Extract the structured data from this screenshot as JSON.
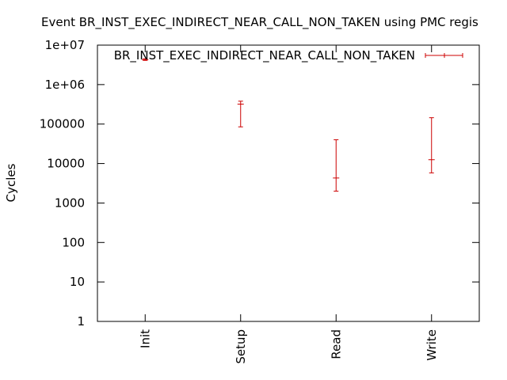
{
  "chart_data": {
    "type": "scatter",
    "subtype": "errorbar",
    "title": "Event BR_INST_EXEC_INDIRECT_NEAR_CALL_NON_TAKEN using PMC regis",
    "xlabel": "",
    "ylabel": "Cycles",
    "yscale": "log",
    "ylim": [
      1,
      10000000
    ],
    "yticks": [
      {
        "value": 1,
        "label": "1"
      },
      {
        "value": 10,
        "label": "10"
      },
      {
        "value": 100,
        "label": "100"
      },
      {
        "value": 1000,
        "label": "1000"
      },
      {
        "value": 10000,
        "label": "10000"
      },
      {
        "value": 100000,
        "label": "100000"
      },
      {
        "value": 1000000,
        "label": "1e+06"
      },
      {
        "value": 10000000,
        "label": "1e+07"
      }
    ],
    "categories": [
      "Init",
      "Setup",
      "Read",
      "Write"
    ],
    "legend": {
      "position": "top-right",
      "label": "BR_INST_EXEC_INDIRECT_NEAR_CALL_NON_TAKEN"
    },
    "grid": false,
    "colors": {
      "series": "#cc0000",
      "axis": "#000000"
    },
    "series": [
      {
        "name": "BR_INST_EXEC_INDIRECT_NEAR_CALL_NON_TAKEN",
        "points": [
          {
            "category": "Init",
            "value": 4300000,
            "low": 4100000,
            "high": 4500000
          },
          {
            "category": "Setup",
            "value": 320000,
            "low": 85000,
            "high": 380000
          },
          {
            "category": "Read",
            "value": 4300,
            "low": 2000,
            "high": 40000
          },
          {
            "category": "Write",
            "value": 12500,
            "low": 5800,
            "high": 145000
          }
        ]
      }
    ]
  }
}
